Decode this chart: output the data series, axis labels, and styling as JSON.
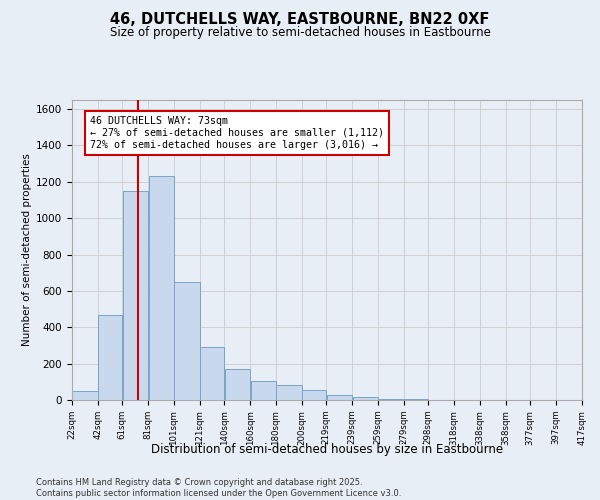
{
  "title": "46, DUTCHELLS WAY, EASTBOURNE, BN22 0XF",
  "subtitle": "Size of property relative to semi-detached houses in Eastbourne",
  "xlabel": "Distribution of semi-detached houses by size in Eastbourne",
  "ylabel": "Number of semi-detached properties",
  "footer_line1": "Contains HM Land Registry data © Crown copyright and database right 2025.",
  "footer_line2": "Contains public sector information licensed under the Open Government Licence v3.0.",
  "bar_left_edges": [
    22,
    42,
    61,
    81,
    101,
    121,
    140,
    160,
    180,
    200,
    219,
    239,
    259,
    279,
    298,
    318,
    338,
    358,
    377,
    397
  ],
  "bar_widths": [
    20,
    19,
    20,
    20,
    20,
    19,
    20,
    20,
    20,
    19,
    20,
    20,
    20,
    19,
    20,
    20,
    20,
    19,
    20,
    20
  ],
  "bar_heights": [
    50,
    470,
    1150,
    1230,
    650,
    290,
    170,
    105,
    80,
    55,
    30,
    15,
    5,
    5,
    0,
    0,
    0,
    0,
    0,
    0
  ],
  "tick_labels": [
    "22sqm",
    "42sqm",
    "61sqm",
    "81sqm",
    "101sqm",
    "121sqm",
    "140sqm",
    "160sqm",
    "180sqm",
    "200sqm",
    "219sqm",
    "239sqm",
    "259sqm",
    "279sqm",
    "298sqm",
    "318sqm",
    "338sqm",
    "358sqm",
    "377sqm",
    "397sqm",
    "417sqm"
  ],
  "bar_color": "#c9d9ed",
  "bar_edge_color": "#7ba3c8",
  "red_line_x": 73,
  "annotation_title": "46 DUTCHELLS WAY: 73sqm",
  "annotation_line2": "← 27% of semi-detached houses are smaller (1,112)",
  "annotation_line3": "72% of semi-detached houses are larger (3,016) →",
  "annotation_box_color": "#ffffff",
  "annotation_border_color": "#cc0000",
  "red_line_color": "#cc0000",
  "grid_color": "#cccccc",
  "background_color": "#e8eef5",
  "ylim": [
    0,
    1650
  ],
  "yticks": [
    0,
    200,
    400,
    600,
    800,
    1000,
    1200,
    1400,
    1600
  ]
}
